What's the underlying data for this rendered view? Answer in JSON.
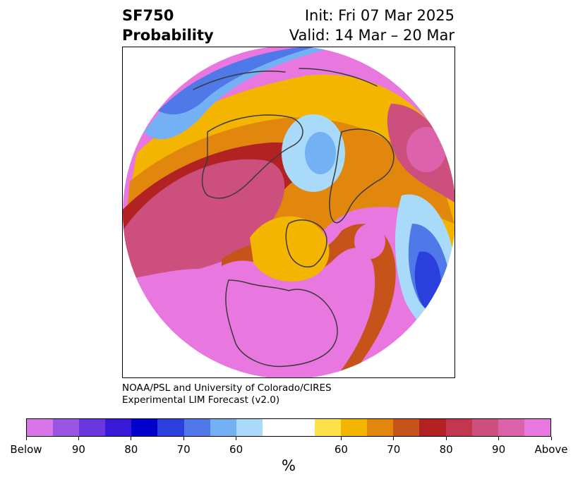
{
  "header": {
    "product": "SF750",
    "field": "Probability",
    "init": "Init: Fri 07 Mar 2025",
    "valid": "Valid: 14 Mar – 20 Mar"
  },
  "credit": {
    "line1": "NOAA/PSL and University of Colorado/CIRES",
    "line2": "Experimental LIM Forecast (v2.0)"
  },
  "colorbar": {
    "colors": [
      "#d876e9",
      "#9b55e3",
      "#6a37df",
      "#3819d8",
      "#0000cc",
      "#2a3fdc",
      "#4f78e8",
      "#74b0f4",
      "#a9daf9",
      "#ffffff",
      "#ffffff",
      "#ffe24a",
      "#f3b500",
      "#e1870d",
      "#c6531a",
      "#b22222",
      "#c2364f",
      "#cd4f7e",
      "#dc62ac",
      "#e877df"
    ],
    "labels": [
      "Below",
      "90",
      "80",
      "70",
      "60",
      "60",
      "70",
      "80",
      "90",
      "Above"
    ],
    "unit": "%"
  },
  "map": {
    "colors": {
      "above_max": "#e877df",
      "above_90": "#dc62ac",
      "above_85": "#cd4f7e",
      "above_80": "#b22222",
      "above_75": "#c6531a",
      "above_70": "#e1870d",
      "above_65": "#f3b500",
      "above_60": "#ffe24a",
      "below_60": "#a9daf9",
      "below_65": "#74b0f4",
      "below_70": "#4f78e8",
      "below_75": "#2a3fdc",
      "coast": "#3a3a3a"
    }
  }
}
